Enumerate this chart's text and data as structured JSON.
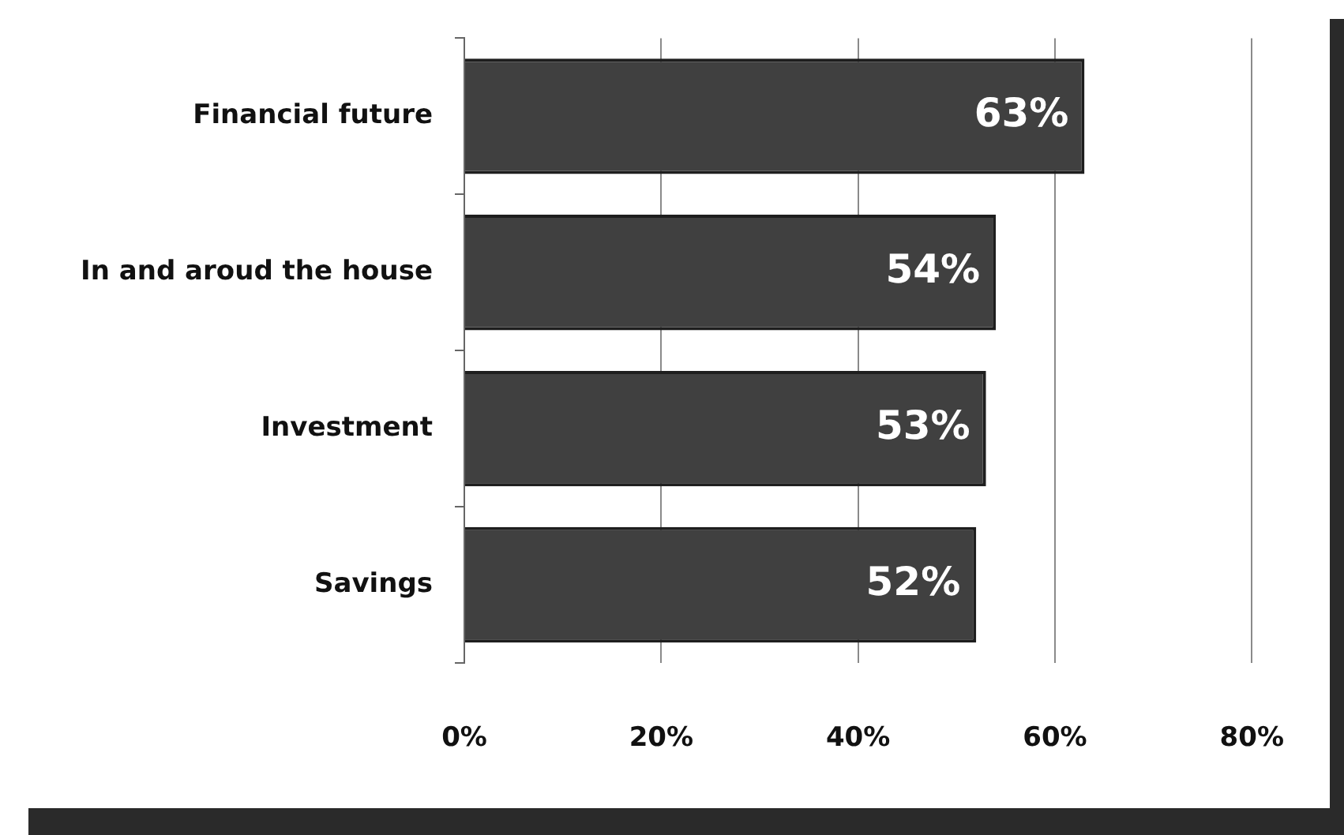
{
  "chart_data": {
    "type": "bar",
    "orientation": "horizontal",
    "categories": [
      "Financial future",
      "In and aroud the house",
      "Investment",
      "Savings"
    ],
    "values": [
      63,
      54,
      53,
      52
    ],
    "color": "#404040",
    "xlim": [
      0,
      80
    ],
    "xticks": [
      {
        "value": 0,
        "label": "0%"
      },
      {
        "value": 20,
        "label": "20%"
      },
      {
        "value": 40,
        "label": "40%"
      },
      {
        "value": 60,
        "label": "60%"
      },
      {
        "value": 80,
        "label": "80%"
      }
    ],
    "grid": "x",
    "legend": false,
    "value_labels": [
      "63%",
      "54%",
      "53%",
      "52%"
    ]
  }
}
